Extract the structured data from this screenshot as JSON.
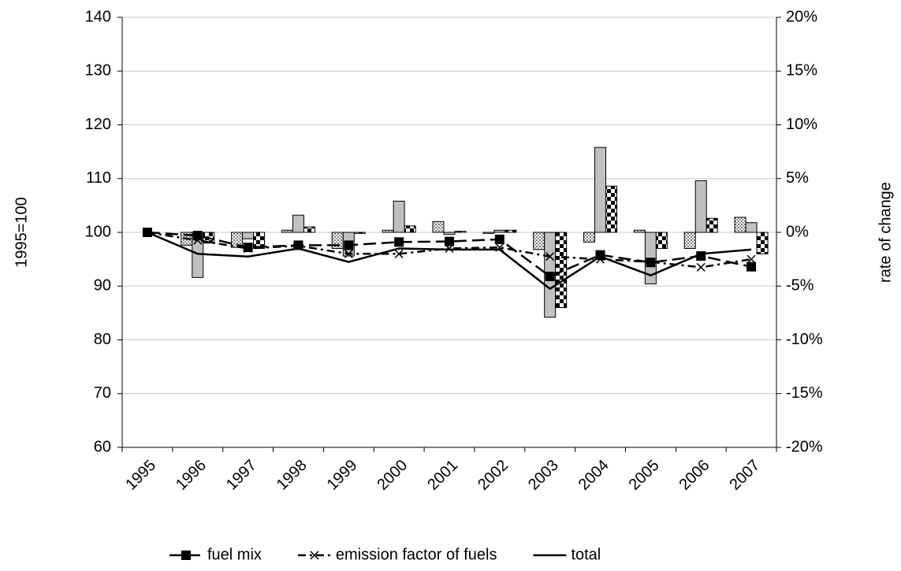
{
  "chart_data": {
    "type": "combo",
    "y_label": "1995=100",
    "y2_label": "rate of change",
    "categories": [
      "1995",
      "1996",
      "1997",
      "1998",
      "1999",
      "2000",
      "2001",
      "2002",
      "2003",
      "2004",
      "2005",
      "2006",
      "2007"
    ],
    "ylim": [
      60,
      140
    ],
    "yticks": [
      60,
      70,
      80,
      90,
      100,
      110,
      120,
      130,
      140
    ],
    "y2lim": [
      -20,
      20
    ],
    "y2ticks": [
      {
        "value": -20,
        "label": "-20%"
      },
      {
        "value": -15,
        "label": "-15%"
      },
      {
        "value": -10,
        "label": "-10%"
      },
      {
        "value": -5,
        "label": "-5%"
      },
      {
        "value": 0,
        "label": "0%"
      },
      {
        "value": 5,
        "label": "5%"
      },
      {
        "value": 10,
        "label": "10%"
      },
      {
        "value": 15,
        "label": "15%"
      },
      {
        "value": 20,
        "label": "20%"
      }
    ],
    "grid": true,
    "legend": "bottom",
    "series": [
      {
        "type": "bar",
        "axis": "y2",
        "color": "#ffffff",
        "pattern": "dots",
        "values": [
          null,
          -1.2,
          -1.4,
          0.2,
          -1.5,
          0.2,
          1.0,
          -0.1,
          -1.6,
          -0.9,
          0.2,
          -1.5,
          1.4
        ]
      },
      {
        "type": "bar",
        "axis": "y2",
        "color": "#c0c0c0",
        "pattern": "solid",
        "values": [
          null,
          -4.2,
          -0.6,
          1.6,
          -2.2,
          2.9,
          -0.2,
          0.2,
          -7.9,
          7.9,
          -4.8,
          4.8,
          0.9
        ]
      },
      {
        "type": "bar",
        "axis": "y2",
        "color": "#ffffff",
        "pattern": "checker",
        "values": [
          null,
          -1.0,
          -1.5,
          0.5,
          -0.1,
          0.6,
          0.1,
          0.2,
          -7.0,
          4.3,
          -1.5,
          1.3,
          -2.0
        ]
      },
      {
        "type": "line",
        "name": "fuel mix",
        "color": "#000000",
        "dash": "16,7",
        "marker": "square",
        "values": [
          100,
          99.4,
          97.2,
          97.6,
          97.6,
          98.2,
          98.3,
          98.7,
          91.8,
          95.8,
          94.4,
          95.6,
          93.6
        ]
      },
      {
        "type": "line",
        "name": "emission factor of fuels",
        "color": "#000000",
        "dash": "10,5,3,5",
        "marker": "x",
        "values": [
          100,
          98.5,
          97.0,
          97.5,
          96.0,
          96.0,
          97.0,
          97.2,
          95.5,
          95.0,
          94.5,
          93.5,
          95.0
        ]
      },
      {
        "type": "line",
        "name": "total",
        "color": "#000000",
        "dash": "none",
        "marker": "none",
        "values": [
          100,
          96.0,
          95.5,
          97.0,
          94.5,
          97.0,
          96.8,
          96.8,
          89.5,
          95.5,
          92.0,
          96.0,
          96.8
        ]
      }
    ]
  }
}
